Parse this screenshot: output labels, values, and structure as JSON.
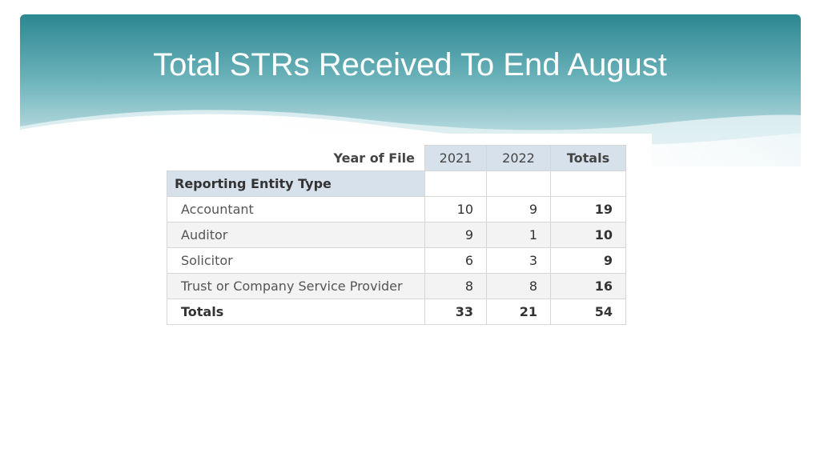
{
  "slide": {
    "title": "Total STRs Received To End August"
  },
  "table": {
    "column_dimension_label": "Year of File",
    "columns": [
      "2021",
      "2022",
      "Totals"
    ],
    "row_dimension_label": "Reporting Entity Type",
    "rows": [
      {
        "label": "Accountant",
        "values": [
          "10",
          "9",
          "19"
        ]
      },
      {
        "label": "Auditor",
        "values": [
          "9",
          "1",
          "10"
        ]
      },
      {
        "label": "Solicitor",
        "values": [
          "6",
          "3",
          "9"
        ]
      },
      {
        "label": "Trust or Company Service Provider",
        "values": [
          "8",
          "8",
          "16"
        ]
      }
    ],
    "totals": {
      "label": "Totals",
      "values": [
        "33",
        "21",
        "54"
      ]
    }
  },
  "colors": {
    "header_dark": "#2f8a95",
    "header_light": "#dff0f2",
    "table_header_bg": "#d7e1ec",
    "alt_row_bg": "#f3f3f3"
  }
}
